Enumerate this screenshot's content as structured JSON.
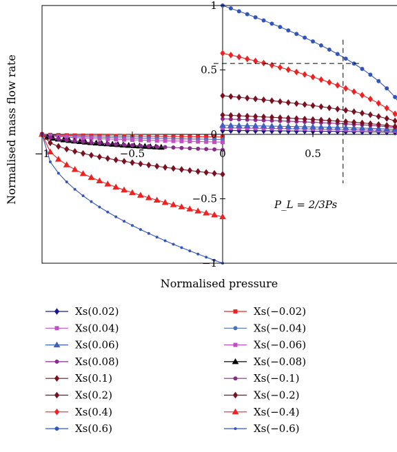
{
  "chart_data": {
    "type": "line",
    "title": "",
    "xlabel": "Normalised pressure",
    "ylabel": "Normalised mass flow rate",
    "xlim": [
      -1,
      1
    ],
    "ylim": [
      -1,
      1
    ],
    "x_ticks": [
      {
        "value": -1,
        "label": "−1"
      },
      {
        "value": -0.5,
        "label": "−0.5"
      },
      {
        "value": 0,
        "label": "0"
      },
      {
        "value": 0.5,
        "label": "0.5"
      }
    ],
    "y_ticks": [
      {
        "value": 1,
        "label": "1"
      },
      {
        "value": 0.5,
        "label": "0.5"
      },
      {
        "value": 0,
        "label": "0"
      },
      {
        "value": -0.5,
        "label": "−0.5"
      },
      {
        "value": -1,
        "label": "−1"
      }
    ],
    "grid": false,
    "legend_position": "bottom",
    "annotation": {
      "text": "P_L = 2/3Ps",
      "x": 0.667,
      "y": 0.55
    },
    "series": [
      {
        "name": "Xs(0.02)",
        "color": "#1a1a8c",
        "marker": "diamond",
        "x": [
          0,
          1
        ],
        "y": [
          0.03,
          0.015
        ]
      },
      {
        "name": "Xs(0.04)",
        "color": "#c050c0",
        "marker": "square",
        "x": [
          0,
          1
        ],
        "y": [
          0.05,
          0.025
        ]
      },
      {
        "name": "Xs(0.06)",
        "color": "#4060c0",
        "marker": "triangle",
        "x": [
          0,
          1
        ],
        "y": [
          0.07,
          0.035
        ]
      },
      {
        "name": "Xs(0.08)",
        "color": "#8a2a8a",
        "marker": "circle",
        "x": [
          0,
          1
        ],
        "y": [
          0.12,
          0.045
        ]
      },
      {
        "name": "Xs(0.1)",
        "color": "#7a1020",
        "marker": "diamond",
        "x": [
          0,
          1
        ],
        "y": [
          0.15,
          0.05
        ]
      },
      {
        "name": "Xs(0.2)",
        "color": "#7a1020",
        "marker": "diamond",
        "x": [
          0,
          1
        ],
        "y": [
          0.3,
          0.08
        ]
      },
      {
        "name": "Xs(0.4)",
        "color": "#ee2222",
        "marker": "diamond",
        "x": [
          0,
          1
        ],
        "y": [
          0.63,
          0.1
        ]
      },
      {
        "name": "Xs(0.6)",
        "color": "#3355bb",
        "marker": "circle",
        "x": [
          0,
          1
        ],
        "y": [
          1.0,
          0.2
        ]
      },
      {
        "name": "Xs(−0.02)",
        "color": "#ee2222",
        "marker": "square",
        "x": [
          -1,
          0
        ],
        "y": [
          0,
          -0.02
        ]
      },
      {
        "name": "Xs(−0.04)",
        "color": "#4a70c0",
        "marker": "circle",
        "x": [
          -1,
          0
        ],
        "y": [
          0,
          -0.04
        ]
      },
      {
        "name": "Xs(−0.06)",
        "color": "#c050c0",
        "marker": "square",
        "x": [
          -1,
          0
        ],
        "y": [
          0,
          -0.06
        ]
      },
      {
        "name": "Xs(−0.08)",
        "color": "#000000",
        "marker": "triangle",
        "x": [
          -1,
          -0.34
        ],
        "y": [
          0,
          -0.1
        ]
      },
      {
        "name": "Xs(−0.1)",
        "color": "#8a2a8a",
        "marker": "circle",
        "x": [
          -1,
          0
        ],
        "y": [
          0,
          -0.12
        ]
      },
      {
        "name": "Xs(−0.2)",
        "color": "#7a1020",
        "marker": "diamond",
        "x": [
          -1,
          0
        ],
        "y": [
          0,
          -0.31
        ]
      },
      {
        "name": "Xs(−0.4)",
        "color": "#ee2222",
        "marker": "triangle",
        "x": [
          -1,
          0
        ],
        "y": [
          0,
          -0.64
        ]
      },
      {
        "name": "Xs(−0.6)",
        "color": "#3355bb",
        "marker": "dot",
        "x": [
          -1,
          0
        ],
        "y": [
          0,
          -1.0
        ]
      }
    ]
  }
}
